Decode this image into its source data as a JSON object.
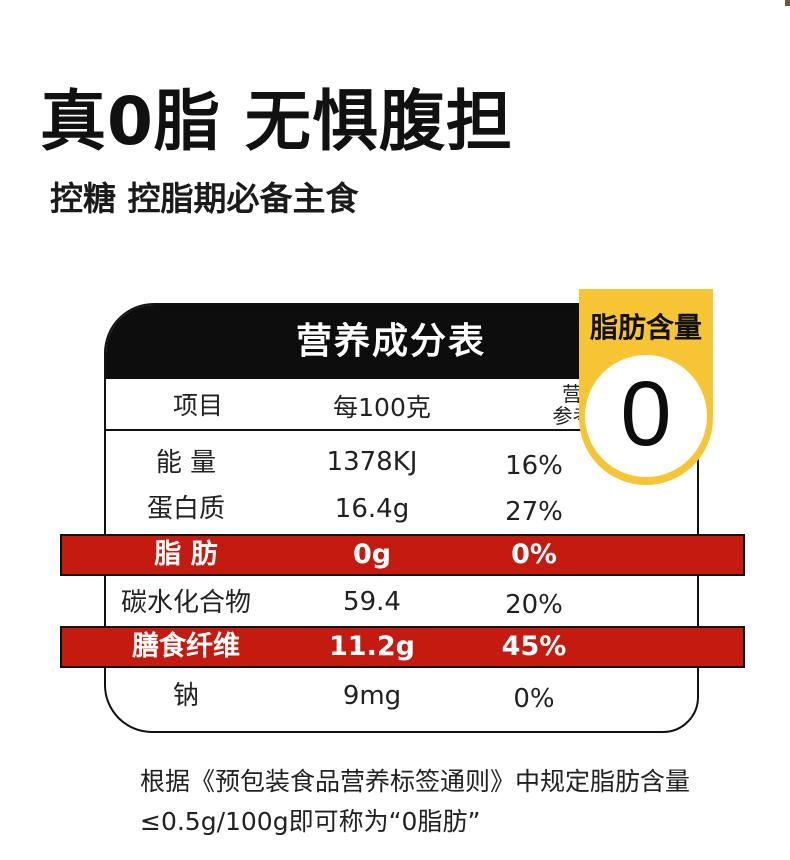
{
  "headline": "真0脂 无惧腹担",
  "subheadline": "控糖 控脂期必备主食",
  "table": {
    "title": "营养成分表",
    "headers": {
      "item": "项目",
      "per100": "每100克",
      "ref_line1": "营养素",
      "ref_line2": "参考值%"
    },
    "rows": [
      {
        "name": "能 量",
        "amount": "1378KJ",
        "ref": "16%",
        "highlight": false
      },
      {
        "name": "蛋白质",
        "amount": "16.4g",
        "ref": "27%",
        "highlight": false
      },
      {
        "name": "脂 肪",
        "amount": "0g",
        "ref": "0%",
        "highlight": true
      },
      {
        "name": "碳水化合物",
        "amount": "59.4",
        "ref": "20%",
        "highlight": false
      },
      {
        "name": "膳食纤维",
        "amount": "11.2g",
        "ref": "45%",
        "highlight": true
      },
      {
        "name": "钠",
        "amount": "9mg",
        "ref": "0%",
        "highlight": false
      }
    ]
  },
  "badge": {
    "title": "脂肪含量",
    "value": "0"
  },
  "footnote": {
    "line1": "根据《预包装食品营养标签通则》中规定脂肪含量",
    "line2": "≤0.5g/100g即可称为“0脂肪”"
  },
  "colors": {
    "highlight_red": "#c51a0f",
    "badge_yellow": "#f7c533",
    "header_black": "#0d0d0d"
  }
}
